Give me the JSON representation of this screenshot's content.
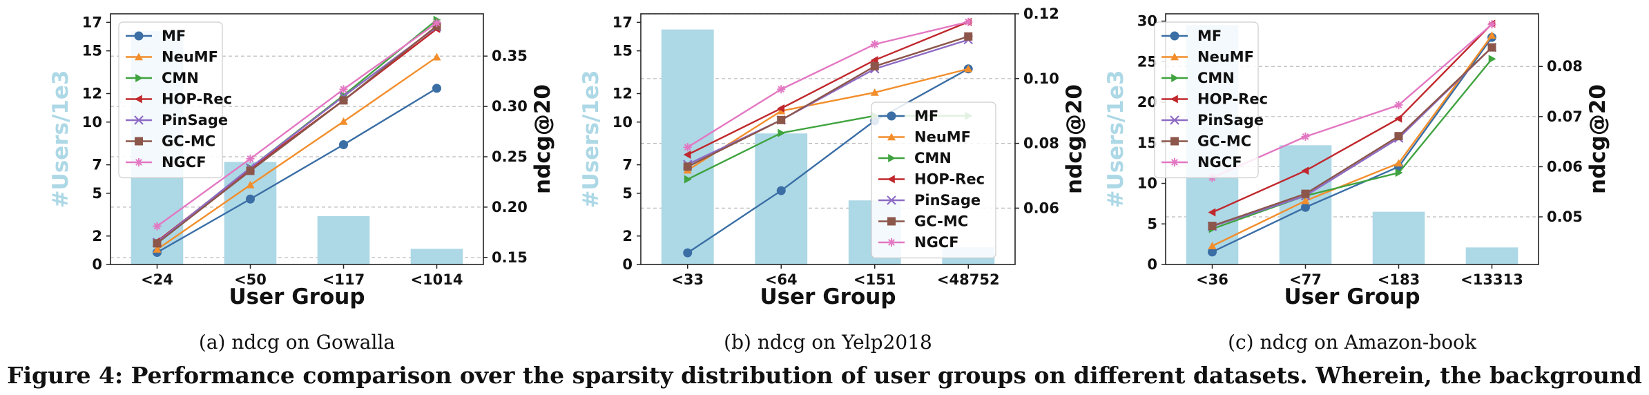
{
  "chart_data": [
    {
      "type": "bar+line",
      "caption": "(a)  ndcg on Gowalla",
      "xlabel": "User Group",
      "ylabel_left": "#Users/1e3",
      "ylabel_right": "ndcg@20",
      "categories": [
        "<24",
        "<50",
        "<117",
        "<1014"
      ],
      "bars": [
        16.4,
        7.2,
        3.4,
        1.1
      ],
      "left_ylim": [
        0,
        17.6
      ],
      "left_ticks": [
        0,
        2,
        5,
        7,
        10,
        12,
        15,
        17
      ],
      "right_ylim": [
        0.143,
        0.392
      ],
      "right_ticks": [
        0.15,
        0.2,
        0.25,
        0.3,
        0.35
      ],
      "right_tick_labels": [
        "0.15",
        "0.20",
        "0.25",
        "0.30",
        "0.35"
      ],
      "legend_position": "top-left",
      "series": [
        {
          "name": "MF",
          "values": [
            0.155,
            0.208,
            0.262,
            0.318
          ]
        },
        {
          "name": "NeuMF",
          "values": [
            0.158,
            0.222,
            0.285,
            0.349
          ]
        },
        {
          "name": "CMN",
          "values": [
            0.165,
            0.239,
            0.311,
            0.386
          ]
        },
        {
          "name": "HOP-Rec",
          "values": [
            0.166,
            0.238,
            0.306,
            0.377
          ]
        },
        {
          "name": "PinSage",
          "values": [
            0.165,
            0.239,
            0.31,
            0.379
          ]
        },
        {
          "name": "GC-MC",
          "values": [
            0.164,
            0.236,
            0.306,
            0.38
          ]
        },
        {
          "name": "NGCF",
          "values": [
            0.181,
            0.248,
            0.317,
            0.383
          ]
        }
      ]
    },
    {
      "type": "bar+line",
      "caption": "(b)  ndcg on Yelp2018",
      "xlabel": "User Group",
      "ylabel_left": "#Users/1e3",
      "ylabel_right": "ndcg@20",
      "categories": [
        "<33",
        "<64",
        "<151",
        "<48752"
      ],
      "bars": [
        16.5,
        9.2,
        4.5,
        1.2
      ],
      "left_ylim": [
        0,
        17.6
      ],
      "left_ticks": [
        0,
        2,
        5,
        7,
        10,
        12,
        15,
        17
      ],
      "right_ylim": [
        0.0426,
        0.12
      ],
      "right_ticks": [
        0.06,
        0.08,
        0.1,
        0.12
      ],
      "right_tick_labels": [
        "0.06",
        "0.08",
        "0.10",
        "0.12"
      ],
      "legend_position": "center-right",
      "series": [
        {
          "name": "MF",
          "values": [
            0.0462,
            0.0654,
            0.087,
            0.103
          ]
        },
        {
          "name": "NeuMF",
          "values": [
            0.0717,
            0.09,
            0.0957,
            0.103
          ]
        },
        {
          "name": "CMN",
          "values": [
            0.0689,
            0.0832,
            0.0885,
            0.0885
          ]
        },
        {
          "name": "HOP-Rec",
          "values": [
            0.0765,
            0.0908,
            0.1057,
            0.1175
          ]
        },
        {
          "name": "PinSage",
          "values": [
            0.0735,
            0.0872,
            0.103,
            0.112
          ]
        },
        {
          "name": "GC-MC",
          "values": [
            0.0728,
            0.0872,
            0.1038,
            0.113
          ]
        },
        {
          "name": "NGCF",
          "values": [
            0.0788,
            0.0967,
            0.1106,
            0.1175
          ]
        }
      ]
    },
    {
      "type": "bar+line",
      "caption": "(c)  ndcg on Amazon-book",
      "xlabel": "User Group",
      "ylabel_left": "#Users/1e3",
      "ylabel_right": "ndcg@20",
      "categories": [
        "<36",
        "<77",
        "<183",
        "<13313"
      ],
      "bars": [
        29.5,
        14.7,
        6.5,
        2.1
      ],
      "left_ylim": [
        0,
        30.9
      ],
      "left_ticks": [
        0,
        5,
        10,
        15,
        20,
        25,
        30
      ],
      "right_ylim": [
        0.0405,
        0.0905
      ],
      "right_ticks": [
        0.05,
        0.06,
        0.07,
        0.08
      ],
      "right_tick_labels": [
        "0.05",
        "0.06",
        "0.07",
        "0.08"
      ],
      "legend_position": "top-left",
      "series": [
        {
          "name": "MF",
          "values": [
            0.043,
            0.0519,
            0.06,
            0.0858
          ]
        },
        {
          "name": "NeuMF",
          "values": [
            0.0442,
            0.0532,
            0.0607,
            0.0862
          ]
        },
        {
          "name": "CMN",
          "values": [
            0.0476,
            0.0542,
            0.0588,
            0.0815
          ]
        },
        {
          "name": "HOP-Rec",
          "values": [
            0.0509,
            0.0592,
            0.0696,
            0.0885
          ]
        },
        {
          "name": "PinSage",
          "values": [
            0.0481,
            0.0542,
            0.0657,
            0.0838
          ]
        },
        {
          "name": "GC-MC",
          "values": [
            0.0482,
            0.0546,
            0.0661,
            0.0838
          ]
        },
        {
          "name": "NGCF",
          "values": [
            0.0578,
            0.066,
            0.0723,
            0.0884
          ]
        }
      ]
    }
  ],
  "series_styles": [
    {
      "color": "#3a6ea5",
      "marker": "circle"
    },
    {
      "color": "#f28e2b",
      "marker": "triangle-up"
    },
    {
      "color": "#3fa33f",
      "marker": "triangle-right"
    },
    {
      "color": "#c0282d",
      "marker": "triangle-left"
    },
    {
      "color": "#8d6bc4",
      "marker": "x"
    },
    {
      "color": "#8c564b",
      "marker": "square"
    },
    {
      "color": "#e377c2",
      "marker": "plus-star"
    }
  ],
  "bar_color": "#add8e6",
  "figure_caption": "Figure 4: Performance comparison over the sparsity distribution of user groups on different datasets. Wherein, the background"
}
